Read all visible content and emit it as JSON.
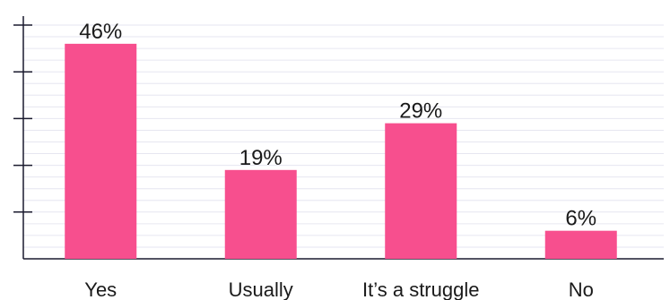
{
  "chart_data": {
    "type": "bar",
    "title": "",
    "xlabel": "",
    "ylabel": "",
    "categories": [
      "Yes",
      "Usually",
      "It’s a struggle",
      "No"
    ],
    "values": [
      46,
      19,
      29,
      6
    ],
    "data_labels": [
      "46%",
      "19%",
      "29%",
      "6%"
    ],
    "ylim": [
      0,
      50
    ],
    "yticks": [
      10,
      20,
      30,
      40,
      50
    ],
    "grid": true,
    "legend": "none",
    "bar_color": "#f74f8e",
    "grid_color": "#e6e6f0",
    "axis_color": "#1a1a2e"
  }
}
